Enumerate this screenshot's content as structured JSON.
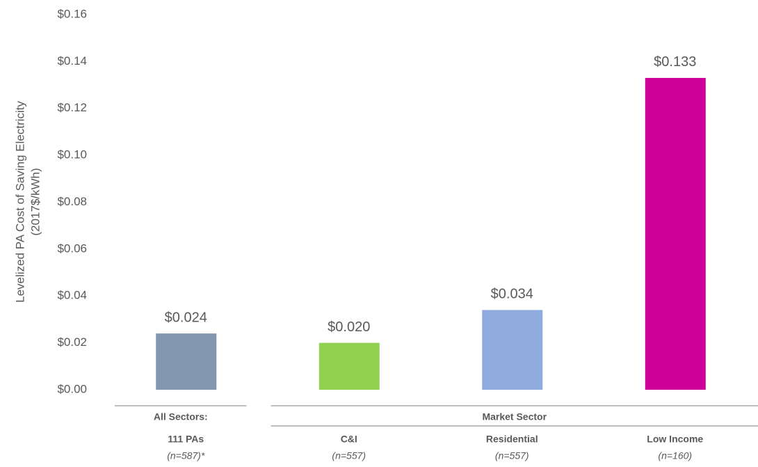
{
  "chart_data": {
    "type": "bar",
    "y_axis_label": [
      "Levelized PA Cost of Saving Electricity",
      "(2017$/kWh)"
    ],
    "categories": [
      "111 PAs",
      "C&I",
      "Residential",
      "Low Income"
    ],
    "category_notes": [
      "(n=587)*",
      "(n=557)",
      "(n=557)",
      "(n=160)"
    ],
    "groups": [
      {
        "label": "All Sectors:",
        "categories": [
          0
        ]
      },
      {
        "label": "Market Sector",
        "categories": [
          1,
          2,
          3
        ]
      }
    ],
    "values": [
      0.024,
      0.02,
      0.034,
      0.133
    ],
    "value_labels": [
      "$0.024",
      "$0.020",
      "$0.034",
      "$0.133"
    ],
    "colors": [
      "#8497b0",
      "#92d050",
      "#8faadc",
      "#cc0099"
    ],
    "ylim": [
      0,
      0.16
    ],
    "yticks": [
      {
        "value": 0,
        "label": "$0.00"
      },
      {
        "value": 0.02,
        "label": "$0.02"
      },
      {
        "value": 0.04,
        "label": "$0.04"
      },
      {
        "value": 0.06,
        "label": "$0.06"
      },
      {
        "value": 0.08,
        "label": "$0.08"
      },
      {
        "value": 0.1,
        "label": "$0.10"
      },
      {
        "value": 0.12,
        "label": "$0.12"
      },
      {
        "value": 0.14,
        "label": "$0.14"
      },
      {
        "value": 0.16,
        "label": "$0.16"
      }
    ]
  }
}
